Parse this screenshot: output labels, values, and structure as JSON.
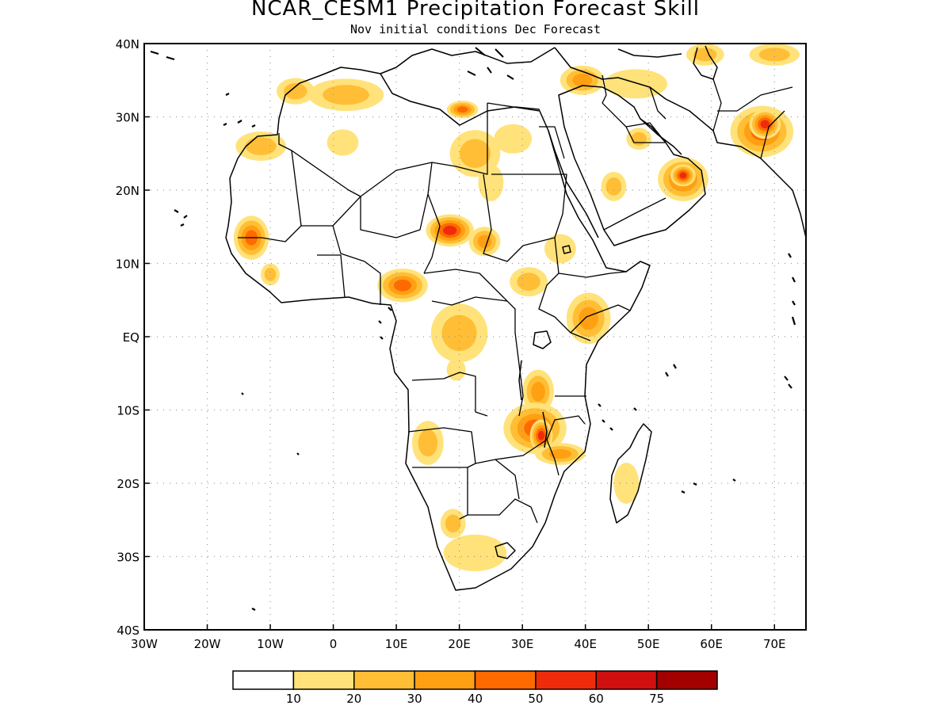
{
  "title": "NCAR_CESM1 Precipitation Forecast Skill",
  "subtitle": "Nov initial conditions  Dec Forecast",
  "map": {
    "lon_range": [
      -30,
      75
    ],
    "lat_range": [
      -40,
      40
    ],
    "lon_ticks": [
      {
        "value": -30,
        "label": "30W"
      },
      {
        "value": -20,
        "label": "20W"
      },
      {
        "value": -10,
        "label": "10W"
      },
      {
        "value": 0,
        "label": "0"
      },
      {
        "value": 10,
        "label": "10E"
      },
      {
        "value": 20,
        "label": "20E"
      },
      {
        "value": 30,
        "label": "30E"
      },
      {
        "value": 40,
        "label": "40E"
      },
      {
        "value": 50,
        "label": "50E"
      },
      {
        "value": 60,
        "label": "60E"
      },
      {
        "value": 70,
        "label": "70E"
      }
    ],
    "lat_ticks": [
      {
        "value": 40,
        "label": "40N"
      },
      {
        "value": 30,
        "label": "30N"
      },
      {
        "value": 20,
        "label": "20N"
      },
      {
        "value": 10,
        "label": "10N"
      },
      {
        "value": 0,
        "label": "EQ"
      },
      {
        "value": -10,
        "label": "10S"
      },
      {
        "value": -20,
        "label": "20S"
      },
      {
        "value": -30,
        "label": "30S"
      },
      {
        "value": -40,
        "label": "40S"
      }
    ],
    "grid": "dotted"
  },
  "colorbar": {
    "colors": [
      "#ffffff",
      "#ffe27a",
      "#ffbe35",
      "#ffa012",
      "#ff6a00",
      "#ee2c0c",
      "#d10f0f",
      "#a30000"
    ],
    "labels": [
      "10",
      "20",
      "30",
      "40",
      "50",
      "60",
      "75"
    ]
  },
  "skill_regions": [
    {
      "name": "sahel-chad-west",
      "lon": 18.5,
      "lat": 14.5,
      "rx": 3.8,
      "ry": 2.2,
      "level": 5
    },
    {
      "name": "sahel-chad-east",
      "lon": 24,
      "lat": 13,
      "rx": 2.5,
      "ry": 2,
      "level": 3
    },
    {
      "name": "central-african-rep",
      "lon": 11,
      "lat": 7,
      "rx": 4,
      "ry": 2.3,
      "level": 4
    },
    {
      "name": "west-africa-coast",
      "lon": -13,
      "lat": 13.5,
      "rx": 2.8,
      "ry": 3,
      "level": 4
    },
    {
      "name": "gulf-of-guinea",
      "lon": -10,
      "lat": 8.5,
      "rx": 1.5,
      "ry": 1.5,
      "level": 2
    },
    {
      "name": "mauritania-west",
      "lon": -11.5,
      "lat": 26,
      "rx": 4,
      "ry": 2,
      "level": 2
    },
    {
      "name": "algeria-north",
      "lon": 2,
      "lat": 33,
      "rx": 6,
      "ry": 2.2,
      "level": 2
    },
    {
      "name": "libya-north",
      "lon": 20.5,
      "lat": 31,
      "rx": 2.5,
      "ry": 1.2,
      "level": 4
    },
    {
      "name": "libya-central",
      "lon": 22.5,
      "lat": 25,
      "rx": 4,
      "ry": 3.2,
      "level": 2
    },
    {
      "name": "algeria-central",
      "lon": 1.5,
      "lat": 26.5,
      "rx": 2.5,
      "ry": 1.8,
      "level": 1
    },
    {
      "name": "congo-basin",
      "lon": 20,
      "lat": 0.5,
      "rx": 4.5,
      "ry": 4,
      "level": 2
    },
    {
      "name": "congo-small",
      "lon": 19.5,
      "lat": -4.5,
      "rx": 1.5,
      "ry": 1.5,
      "level": 1
    },
    {
      "name": "south-sudan",
      "lon": 31,
      "lat": 7.5,
      "rx": 3,
      "ry": 2,
      "level": 2
    },
    {
      "name": "ethiopia",
      "lon": 36,
      "lat": 12,
      "rx": 2.5,
      "ry": 2,
      "level": 1
    },
    {
      "name": "kenya-somalia",
      "lon": 40.5,
      "lat": 2.5,
      "rx": 3.5,
      "ry": 3.5,
      "level": 3
    },
    {
      "name": "tanzania",
      "lon": 32.5,
      "lat": -7.5,
      "rx": 2.5,
      "ry": 3,
      "level": 3
    },
    {
      "name": "malawi-zambia",
      "lon": 32,
      "lat": -12.5,
      "rx": 5,
      "ry": 3.5,
      "level": 4
    },
    {
      "name": "malawi-core",
      "lon": 33,
      "lat": -13.5,
      "rx": 1.8,
      "ry": 2.2,
      "level": 5
    },
    {
      "name": "mozambique",
      "lon": 36,
      "lat": -16,
      "rx": 4,
      "ry": 1.5,
      "level": 3
    },
    {
      "name": "angola",
      "lon": 15,
      "lat": -14.5,
      "rx": 2.5,
      "ry": 3,
      "level": 2
    },
    {
      "name": "madagascar",
      "lon": 46.5,
      "lat": -20,
      "rx": 2,
      "ry": 2.8,
      "level": 1
    },
    {
      "name": "south-africa",
      "lon": 22.5,
      "lat": -29.5,
      "rx": 5,
      "ry": 2.5,
      "level": 1
    },
    {
      "name": "south-africa-west",
      "lon": 19,
      "lat": -25.5,
      "rx": 2,
      "ry": 2,
      "level": 2
    },
    {
      "name": "oman",
      "lon": 55.5,
      "lat": 21.5,
      "rx": 4,
      "ry": 3,
      "level": 4
    },
    {
      "name": "oman-core",
      "lon": 55.5,
      "lat": 22,
      "rx": 2,
      "ry": 1.5,
      "level": 5
    },
    {
      "name": "saudi-west",
      "lon": 44.5,
      "lat": 20.5,
      "rx": 2,
      "ry": 2,
      "level": 2
    },
    {
      "name": "saudi-north",
      "lon": 48.5,
      "lat": 27,
      "rx": 2,
      "ry": 1.5,
      "level": 2
    },
    {
      "name": "iraq",
      "lon": 48,
      "lat": 34.5,
      "rx": 5,
      "ry": 2,
      "level": 1
    },
    {
      "name": "levant",
      "lon": 39.5,
      "lat": 35,
      "rx": 3.5,
      "ry": 2,
      "level": 3
    },
    {
      "name": "pakistan",
      "lon": 68,
      "lat": 28,
      "rx": 5,
      "ry": 3.5,
      "level": 4
    },
    {
      "name": "pakistan-core",
      "lon": 68.5,
      "lat": 29,
      "rx": 2.5,
      "ry": 2,
      "level": 5
    },
    {
      "name": "iran-north",
      "lon": 59,
      "lat": 38.5,
      "rx": 3,
      "ry": 1.5,
      "level": 2
    },
    {
      "name": "afghanistan",
      "lon": 70,
      "lat": 38.5,
      "rx": 4,
      "ry": 1.5,
      "level": 2
    },
    {
      "name": "morocco",
      "lon": -6,
      "lat": 33.5,
      "rx": 3,
      "ry": 1.8,
      "level": 2
    },
    {
      "name": "sudan-north",
      "lon": 25,
      "lat": 21,
      "rx": 2,
      "ry": 2.5,
      "level": 1
    },
    {
      "name": "egypt",
      "lon": 28.5,
      "lat": 27,
      "rx": 3,
      "ry": 2,
      "level": 1
    }
  ]
}
